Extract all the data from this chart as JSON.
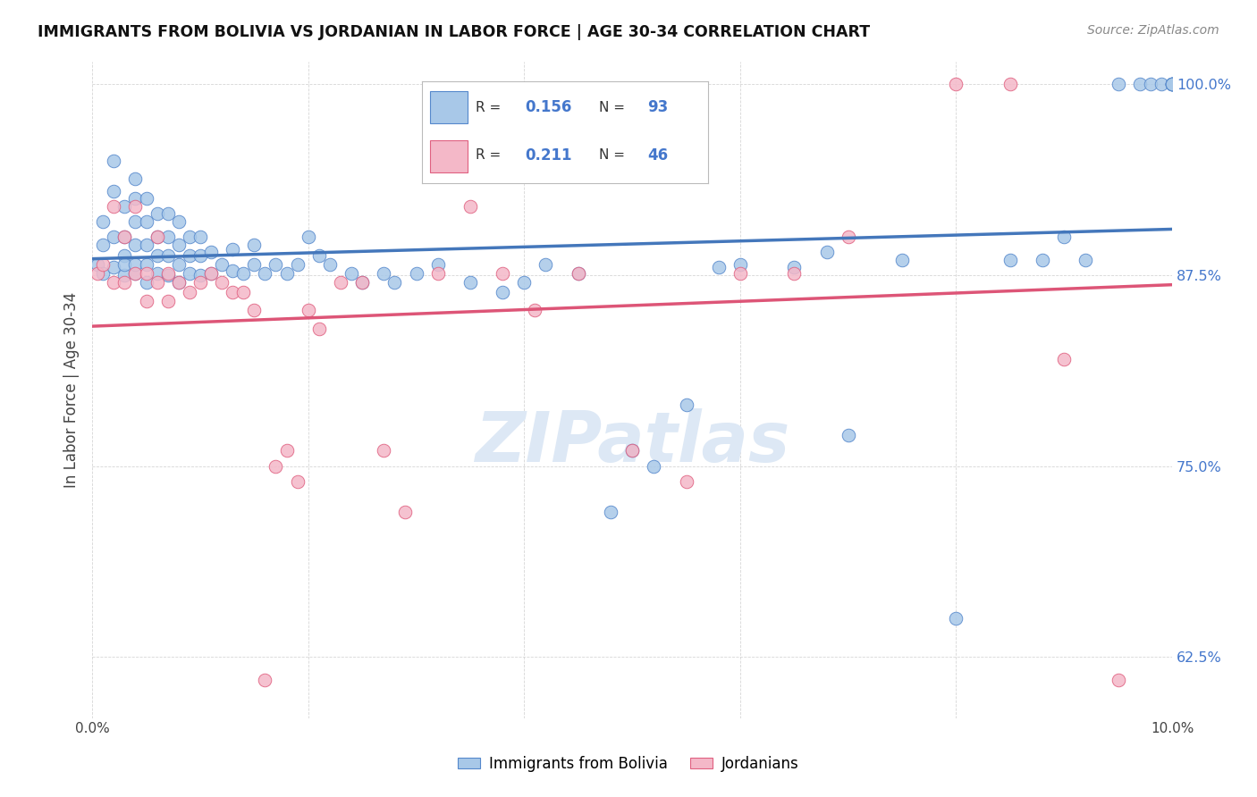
{
  "title": "IMMIGRANTS FROM BOLIVIA VS JORDANIAN IN LABOR FORCE | AGE 30-34 CORRELATION CHART",
  "source": "Source: ZipAtlas.com",
  "ylabel": "In Labor Force | Age 30-34",
  "xlabel": "",
  "xlim": [
    0.0,
    0.1
  ],
  "ylim": [
    0.585,
    1.015
  ],
  "yticks": [
    0.625,
    0.75,
    0.875,
    1.0
  ],
  "ytick_labels": [
    "62.5%",
    "75.0%",
    "87.5%",
    "100.0%"
  ],
  "xticks": [
    0.0,
    0.02,
    0.04,
    0.06,
    0.08,
    0.1
  ],
  "xtick_labels": [
    "0.0%",
    "",
    "",
    "",
    "",
    "10.0%"
  ],
  "blue_R": 0.156,
  "blue_N": 93,
  "pink_R": 0.211,
  "pink_N": 46,
  "legend_label_blue": "Immigrants from Bolivia",
  "legend_label_pink": "Jordanians",
  "blue_color": "#a8c8e8",
  "pink_color": "#f4b8c8",
  "blue_edge_color": "#5588cc",
  "pink_edge_color": "#e06080",
  "blue_line_color": "#4477bb",
  "pink_line_color": "#dd5577",
  "watermark": "ZIPatlas",
  "watermark_color": "#dde8f5",
  "background_color": "#ffffff",
  "blue_points_x": [
    0.0005,
    0.001,
    0.001,
    0.001,
    0.002,
    0.002,
    0.002,
    0.002,
    0.003,
    0.003,
    0.003,
    0.003,
    0.003,
    0.004,
    0.004,
    0.004,
    0.004,
    0.004,
    0.004,
    0.005,
    0.005,
    0.005,
    0.005,
    0.005,
    0.006,
    0.006,
    0.006,
    0.006,
    0.007,
    0.007,
    0.007,
    0.007,
    0.008,
    0.008,
    0.008,
    0.008,
    0.009,
    0.009,
    0.009,
    0.01,
    0.01,
    0.01,
    0.011,
    0.011,
    0.012,
    0.013,
    0.013,
    0.014,
    0.015,
    0.015,
    0.016,
    0.017,
    0.018,
    0.019,
    0.02,
    0.021,
    0.022,
    0.024,
    0.025,
    0.027,
    0.028,
    0.03,
    0.032,
    0.035,
    0.038,
    0.04,
    0.042,
    0.045,
    0.048,
    0.05,
    0.052,
    0.055,
    0.058,
    0.06,
    0.065,
    0.068,
    0.07,
    0.075,
    0.08,
    0.085,
    0.088,
    0.09,
    0.092,
    0.095,
    0.097,
    0.098,
    0.099,
    0.1,
    0.1,
    0.1,
    0.1,
    0.1,
    0.1
  ],
  "blue_points_y": [
    0.882,
    0.876,
    0.895,
    0.91,
    0.88,
    0.9,
    0.93,
    0.95,
    0.875,
    0.888,
    0.9,
    0.92,
    0.882,
    0.876,
    0.882,
    0.895,
    0.91,
    0.925,
    0.938,
    0.87,
    0.882,
    0.895,
    0.91,
    0.925,
    0.876,
    0.888,
    0.9,
    0.915,
    0.875,
    0.888,
    0.9,
    0.915,
    0.87,
    0.882,
    0.895,
    0.91,
    0.876,
    0.888,
    0.9,
    0.875,
    0.888,
    0.9,
    0.876,
    0.89,
    0.882,
    0.878,
    0.892,
    0.876,
    0.882,
    0.895,
    0.876,
    0.882,
    0.876,
    0.882,
    0.9,
    0.888,
    0.882,
    0.876,
    0.87,
    0.876,
    0.87,
    0.876,
    0.882,
    0.87,
    0.864,
    0.87,
    0.882,
    0.876,
    0.72,
    0.76,
    0.75,
    0.79,
    0.88,
    0.882,
    0.88,
    0.89,
    0.77,
    0.885,
    0.65,
    0.885,
    0.885,
    0.9,
    0.885,
    1.0,
    1.0,
    1.0,
    1.0,
    1.0,
    1.0,
    1.0,
    1.0,
    1.0,
    1.0
  ],
  "pink_points_x": [
    0.0005,
    0.001,
    0.002,
    0.002,
    0.003,
    0.003,
    0.004,
    0.004,
    0.005,
    0.005,
    0.006,
    0.006,
    0.007,
    0.007,
    0.008,
    0.009,
    0.01,
    0.011,
    0.012,
    0.013,
    0.014,
    0.015,
    0.016,
    0.017,
    0.018,
    0.019,
    0.02,
    0.021,
    0.023,
    0.025,
    0.027,
    0.029,
    0.032,
    0.035,
    0.038,
    0.041,
    0.045,
    0.05,
    0.055,
    0.06,
    0.065,
    0.07,
    0.08,
    0.085,
    0.09,
    0.095
  ],
  "pink_points_y": [
    0.876,
    0.882,
    0.92,
    0.87,
    0.9,
    0.87,
    0.876,
    0.92,
    0.858,
    0.876,
    0.87,
    0.9,
    0.858,
    0.876,
    0.87,
    0.864,
    0.87,
    0.876,
    0.87,
    0.864,
    0.864,
    0.852,
    0.61,
    0.75,
    0.76,
    0.74,
    0.852,
    0.84,
    0.87,
    0.87,
    0.76,
    0.72,
    0.876,
    0.92,
    0.876,
    0.852,
    0.876,
    0.76,
    0.74,
    0.876,
    0.876,
    0.9,
    1.0,
    1.0,
    0.82,
    0.61
  ]
}
